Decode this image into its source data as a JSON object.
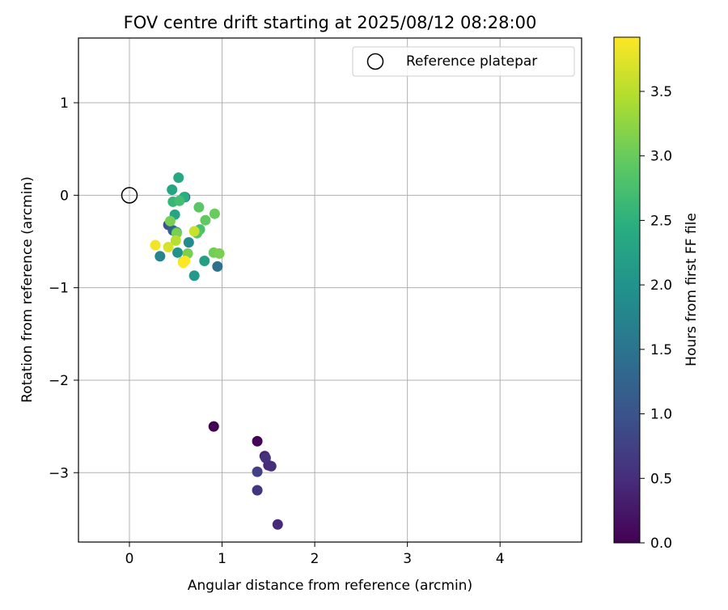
{
  "chart_data": {
    "type": "scatter",
    "title": "FOV centre drift starting at 2025/08/12 08:28:00",
    "xlabel": "Angular distance from reference (arcmin)",
    "ylabel": "Rotation from reference (arcmin)",
    "xlim": [
      -0.55,
      4.88
    ],
    "ylim": [
      -3.75,
      1.7
    ],
    "xticks": [
      0,
      1,
      2,
      3,
      4
    ],
    "yticks": [
      1,
      0,
      -1,
      -2,
      -3
    ],
    "grid": true,
    "legend": {
      "position": "top-right",
      "entries": [
        "Reference platepar"
      ]
    },
    "reference_point": {
      "x": 0,
      "y": 0
    },
    "colorbar": {
      "label": "Hours from first FF file",
      "min": 0,
      "max": 3.92,
      "ticks": [
        0.0,
        0.5,
        1.0,
        1.5,
        2.0,
        2.5,
        3.0,
        3.5
      ],
      "colormap": "viridis"
    },
    "points": [
      {
        "x": 0.91,
        "y": -2.5,
        "c": 0.0
      },
      {
        "x": 1.38,
        "y": -2.66,
        "c": 0.05
      },
      {
        "x": 1.46,
        "y": -2.82,
        "c": 0.35
      },
      {
        "x": 1.5,
        "y": -2.92,
        "c": 0.45
      },
      {
        "x": 1.47,
        "y": -2.84,
        "c": 0.55
      },
      {
        "x": 1.53,
        "y": -2.93,
        "c": 0.5
      },
      {
        "x": 1.38,
        "y": -2.99,
        "c": 0.75
      },
      {
        "x": 1.38,
        "y": -3.19,
        "c": 0.6
      },
      {
        "x": 1.6,
        "y": -3.56,
        "c": 0.45
      },
      {
        "x": 0.42,
        "y": -0.32,
        "c": 1.0
      },
      {
        "x": 0.47,
        "y": -0.38,
        "c": 1.2
      },
      {
        "x": 0.6,
        "y": -0.02,
        "c": 1.3
      },
      {
        "x": 0.95,
        "y": -0.77,
        "c": 1.45
      },
      {
        "x": 0.33,
        "y": -0.66,
        "c": 1.75
      },
      {
        "x": 0.64,
        "y": -0.51,
        "c": 1.9
      },
      {
        "x": 0.52,
        "y": -0.62,
        "c": 2.0
      },
      {
        "x": 0.7,
        "y": -0.87,
        "c": 2.1
      },
      {
        "x": 0.51,
        "y": -0.4,
        "c": 2.2
      },
      {
        "x": 0.81,
        "y": -0.71,
        "c": 2.2
      },
      {
        "x": 0.49,
        "y": -0.21,
        "c": 2.3
      },
      {
        "x": 0.46,
        "y": 0.06,
        "c": 2.3
      },
      {
        "x": 0.53,
        "y": 0.19,
        "c": 2.35
      },
      {
        "x": 0.59,
        "y": -0.02,
        "c": 2.45
      },
      {
        "x": 0.47,
        "y": -0.07,
        "c": 2.6
      },
      {
        "x": 0.54,
        "y": -0.06,
        "c": 2.7
      },
      {
        "x": 0.76,
        "y": -0.37,
        "c": 2.75
      },
      {
        "x": 0.73,
        "y": -0.41,
        "c": 2.85
      },
      {
        "x": 0.75,
        "y": -0.13,
        "c": 2.9
      },
      {
        "x": 0.82,
        "y": -0.27,
        "c": 2.95
      },
      {
        "x": 0.92,
        "y": -0.2,
        "c": 3.0
      },
      {
        "x": 0.91,
        "y": -0.62,
        "c": 3.05
      },
      {
        "x": 0.97,
        "y": -0.63,
        "c": 3.1
      },
      {
        "x": 0.63,
        "y": -0.63,
        "c": 3.1
      },
      {
        "x": 0.44,
        "y": -0.28,
        "c": 3.1
      },
      {
        "x": 0.51,
        "y": -0.41,
        "c": 3.1
      },
      {
        "x": 0.58,
        "y": -0.72,
        "c": 3.2
      },
      {
        "x": 0.5,
        "y": -0.49,
        "c": 3.5
      },
      {
        "x": 0.7,
        "y": -0.39,
        "c": 3.6
      },
      {
        "x": 0.42,
        "y": -0.56,
        "c": 3.7
      },
      {
        "x": 0.28,
        "y": -0.54,
        "c": 3.85
      },
      {
        "x": 0.6,
        "y": -0.71,
        "c": 3.9
      },
      {
        "x": 0.58,
        "y": -0.73,
        "c": 3.92
      }
    ]
  }
}
